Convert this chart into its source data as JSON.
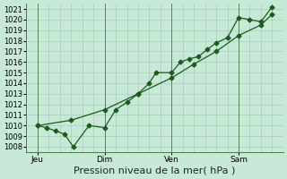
{
  "xlabel": "Pression niveau de la mer( hPa )",
  "bg_color": "#c8e8d8",
  "plot_bg_color": "#c8e8d8",
  "grid_color": "#a0c8b0",
  "line_color": "#1a5c1a",
  "ylim": [
    1007.5,
    1021.5
  ],
  "yticks": [
    1008,
    1009,
    1010,
    1011,
    1012,
    1013,
    1014,
    1015,
    1016,
    1017,
    1018,
    1019,
    1020,
    1021
  ],
  "day_labels": [
    "Jeu",
    "Dim",
    "Ven",
    "Sam"
  ],
  "day_positions": [
    0.5,
    3.5,
    6.5,
    9.5
  ],
  "vline_positions": [
    0.5,
    3.5,
    6.5,
    9.5
  ],
  "line1_x": [
    0.5,
    0.9,
    1.3,
    1.7,
    2.1,
    2.8,
    3.5,
    4.0,
    4.5,
    5.0,
    5.5,
    5.8,
    6.5,
    6.9,
    7.3,
    7.7,
    8.1,
    8.5,
    9.0,
    9.5,
    10.0,
    10.5,
    11.0
  ],
  "line1_y": [
    1010,
    1009.8,
    1009.5,
    1009.2,
    1008.0,
    1010.0,
    1009.8,
    1011.5,
    1012.2,
    1013.0,
    1014.0,
    1015.0,
    1015.0,
    1016.0,
    1016.3,
    1016.5,
    1017.2,
    1017.8,
    1018.3,
    1020.2,
    1020.0,
    1019.8,
    1021.2
  ],
  "line2_x": [
    0.5,
    2.0,
    3.5,
    5.0,
    6.5,
    7.5,
    8.5,
    9.5,
    10.5,
    11.0
  ],
  "line2_y": [
    1010,
    1010.5,
    1011.5,
    1013.0,
    1014.5,
    1015.8,
    1017.0,
    1018.5,
    1019.5,
    1020.5
  ],
  "xlim": [
    0.0,
    11.5
  ],
  "xtick_fontsize": 6.5,
  "ytick_fontsize": 6,
  "xlabel_fontsize": 8,
  "marker_size": 2.5,
  "linewidth": 0.9
}
